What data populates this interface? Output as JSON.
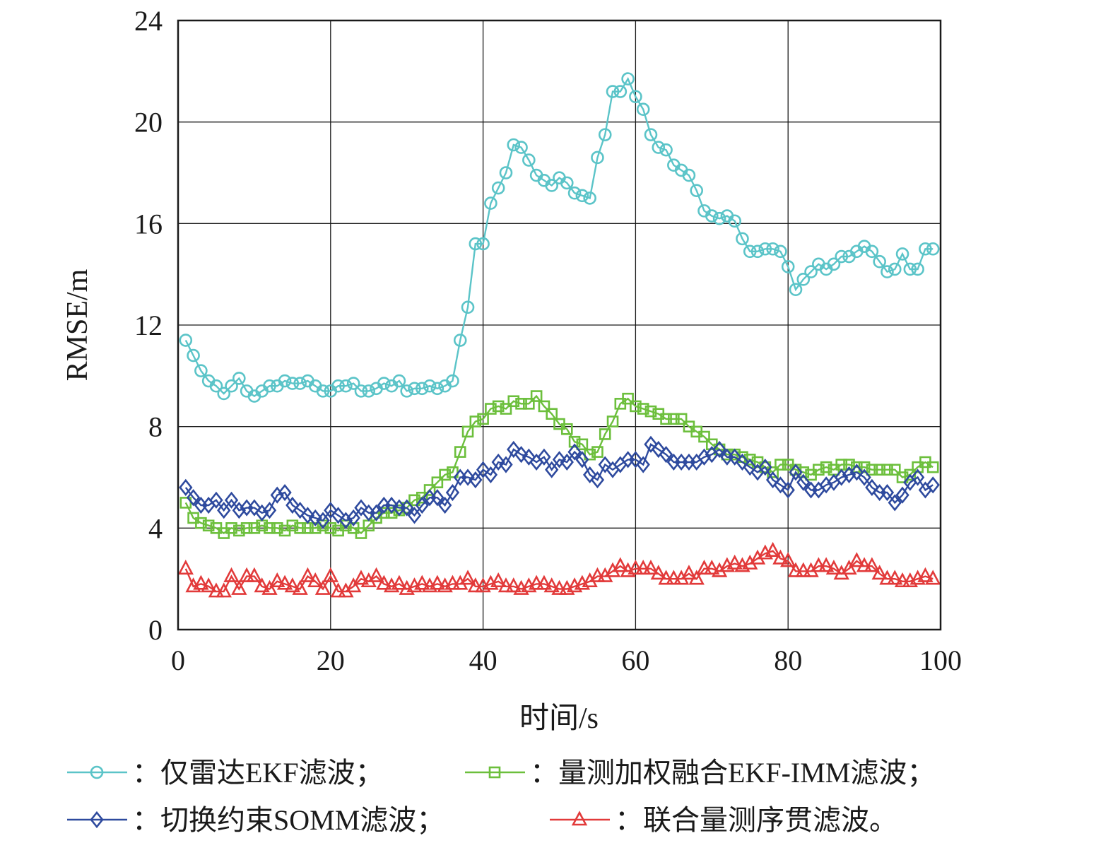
{
  "chart_data": {
    "type": "line",
    "title": "",
    "xlabel": "时间/s",
    "ylabel": "RMSE/m",
    "xlim": [
      0,
      100
    ],
    "ylim": [
      0,
      24
    ],
    "xticks": [
      0,
      20,
      40,
      60,
      80,
      100
    ],
    "yticks": [
      0,
      4,
      8,
      12,
      16,
      20,
      24
    ],
    "grid": true,
    "legend_position": "bottom",
    "x": [
      1,
      2,
      3,
      4,
      5,
      6,
      7,
      8,
      9,
      10,
      11,
      12,
      13,
      14,
      15,
      16,
      17,
      18,
      19,
      20,
      21,
      22,
      23,
      24,
      25,
      26,
      27,
      28,
      29,
      30,
      31,
      32,
      33,
      34,
      35,
      36,
      37,
      38,
      39,
      40,
      41,
      42,
      43,
      44,
      45,
      46,
      47,
      48,
      49,
      50,
      51,
      52,
      53,
      54,
      55,
      56,
      57,
      58,
      59,
      60,
      61,
      62,
      63,
      64,
      65,
      66,
      67,
      68,
      69,
      70,
      71,
      72,
      73,
      74,
      75,
      76,
      77,
      78,
      79,
      80,
      81,
      82,
      83,
      84,
      85,
      86,
      87,
      88,
      89,
      90,
      91,
      92,
      93,
      94,
      95,
      96,
      97,
      98,
      99
    ],
    "series": [
      {
        "name": "：仅雷达EKF滤波；",
        "color": "#5bc4c8",
        "marker": "circle",
        "values": [
          11.4,
          10.8,
          10.2,
          9.8,
          9.6,
          9.3,
          9.6,
          9.9,
          9.4,
          9.2,
          9.4,
          9.6,
          9.6,
          9.8,
          9.7,
          9.7,
          9.8,
          9.6,
          9.4,
          9.4,
          9.6,
          9.6,
          9.7,
          9.4,
          9.4,
          9.5,
          9.7,
          9.6,
          9.8,
          9.4,
          9.5,
          9.5,
          9.6,
          9.5,
          9.6,
          9.8,
          11.4,
          12.7,
          15.2,
          15.2,
          16.8,
          17.4,
          18.0,
          19.1,
          19.0,
          18.5,
          17.9,
          17.7,
          17.5,
          17.8,
          17.6,
          17.2,
          17.1,
          17.0,
          18.6,
          19.5,
          21.2,
          21.2,
          21.7,
          21.0,
          20.5,
          19.5,
          19.0,
          18.9,
          18.3,
          18.1,
          17.9,
          17.3,
          16.5,
          16.3,
          16.2,
          16.3,
          16.1,
          15.4,
          14.9,
          14.9,
          15.0,
          15.0,
          14.9,
          14.3,
          13.4,
          13.8,
          14.1,
          14.4,
          14.2,
          14.4,
          14.7,
          14.7,
          14.9,
          15.1,
          14.9,
          14.5,
          14.1,
          14.2,
          14.8,
          14.2,
          14.2,
          15.0,
          15.0
        ]
      },
      {
        "name": "：量测加权融合EKF-IMM滤波；",
        "color": "#6cbf3c",
        "marker": "square",
        "values": [
          5.0,
          4.4,
          4.2,
          4.1,
          4.0,
          3.8,
          4.0,
          3.9,
          4.0,
          4.0,
          4.1,
          4.0,
          4.0,
          3.9,
          4.1,
          4.0,
          4.0,
          4.0,
          4.1,
          4.0,
          3.9,
          4.1,
          4.0,
          3.8,
          4.1,
          4.4,
          4.6,
          4.6,
          4.7,
          4.8,
          5.1,
          5.2,
          5.5,
          5.8,
          6.1,
          6.2,
          7.0,
          7.8,
          8.2,
          8.3,
          8.7,
          8.8,
          8.7,
          9.0,
          8.9,
          8.9,
          9.2,
          8.8,
          8.5,
          8.1,
          7.9,
          7.4,
          7.3,
          6.9,
          7.0,
          7.7,
          8.2,
          8.9,
          9.1,
          8.8,
          8.7,
          8.6,
          8.5,
          8.3,
          8.3,
          8.3,
          8.0,
          7.8,
          7.6,
          7.3,
          7.1,
          6.9,
          6.9,
          6.8,
          6.7,
          6.6,
          6.4,
          6.2,
          6.5,
          6.5,
          6.3,
          6.2,
          6.1,
          6.3,
          6.4,
          6.3,
          6.5,
          6.5,
          6.4,
          6.4,
          6.3,
          6.3,
          6.3,
          6.3,
          6.0,
          6.1,
          6.4,
          6.6,
          6.4
        ]
      },
      {
        "name": "：切换约束SOMM滤波；",
        "color": "#2e4a9e",
        "marker": "diamond",
        "values": [
          5.6,
          5.2,
          4.9,
          4.9,
          5.1,
          4.7,
          5.1,
          4.7,
          4.8,
          4.8,
          4.6,
          4.7,
          5.3,
          5.4,
          4.9,
          4.7,
          4.5,
          4.4,
          4.3,
          4.7,
          4.5,
          4.3,
          4.4,
          4.8,
          4.6,
          4.6,
          4.9,
          4.9,
          4.8,
          4.8,
          4.5,
          4.9,
          5.2,
          5.2,
          4.9,
          5.4,
          6.0,
          6.0,
          5.9,
          6.3,
          6.1,
          6.6,
          6.5,
          7.1,
          6.9,
          6.8,
          6.6,
          6.8,
          6.3,
          6.7,
          6.6,
          7.0,
          6.7,
          6.1,
          5.9,
          6.5,
          6.3,
          6.5,
          6.7,
          6.7,
          6.5,
          7.3,
          7.1,
          6.9,
          6.6,
          6.6,
          6.6,
          6.6,
          6.8,
          6.9,
          7.1,
          6.8,
          6.8,
          6.6,
          6.4,
          6.2,
          6.4,
          5.9,
          5.7,
          5.5,
          6.2,
          5.8,
          5.5,
          5.5,
          5.7,
          5.8,
          6.0,
          6.1,
          6.2,
          6.0,
          5.6,
          5.4,
          5.4,
          5.0,
          5.3,
          5.8,
          6.0,
          5.5,
          5.7
        ]
      },
      {
        "name": "：联合量测序贯滤波。",
        "color": "#e23a3a",
        "marker": "triangle",
        "values": [
          2.4,
          1.7,
          1.8,
          1.7,
          1.5,
          1.5,
          2.1,
          1.6,
          2.1,
          2.1,
          1.7,
          1.6,
          1.9,
          1.8,
          1.7,
          1.6,
          2.1,
          1.9,
          1.6,
          2.1,
          1.5,
          1.5,
          1.7,
          2.0,
          1.9,
          2.1,
          1.8,
          1.7,
          1.8,
          1.6,
          1.7,
          1.8,
          1.7,
          1.8,
          1.7,
          1.8,
          1.8,
          2.0,
          1.7,
          1.7,
          1.8,
          1.9,
          1.7,
          1.7,
          1.6,
          1.7,
          1.8,
          1.8,
          1.7,
          1.6,
          1.6,
          1.7,
          1.8,
          1.9,
          2.1,
          2.1,
          2.3,
          2.5,
          2.3,
          2.4,
          2.4,
          2.4,
          2.2,
          2.0,
          2.0,
          2.0,
          2.2,
          2.0,
          2.4,
          2.4,
          2.3,
          2.5,
          2.6,
          2.5,
          2.6,
          2.8,
          3.0,
          3.1,
          2.8,
          2.7,
          2.3,
          2.3,
          2.3,
          2.5,
          2.5,
          2.4,
          2.2,
          2.4,
          2.7,
          2.5,
          2.5,
          2.2,
          2.0,
          2.0,
          1.9,
          1.9,
          2.0,
          2.1,
          2.0
        ]
      }
    ]
  }
}
